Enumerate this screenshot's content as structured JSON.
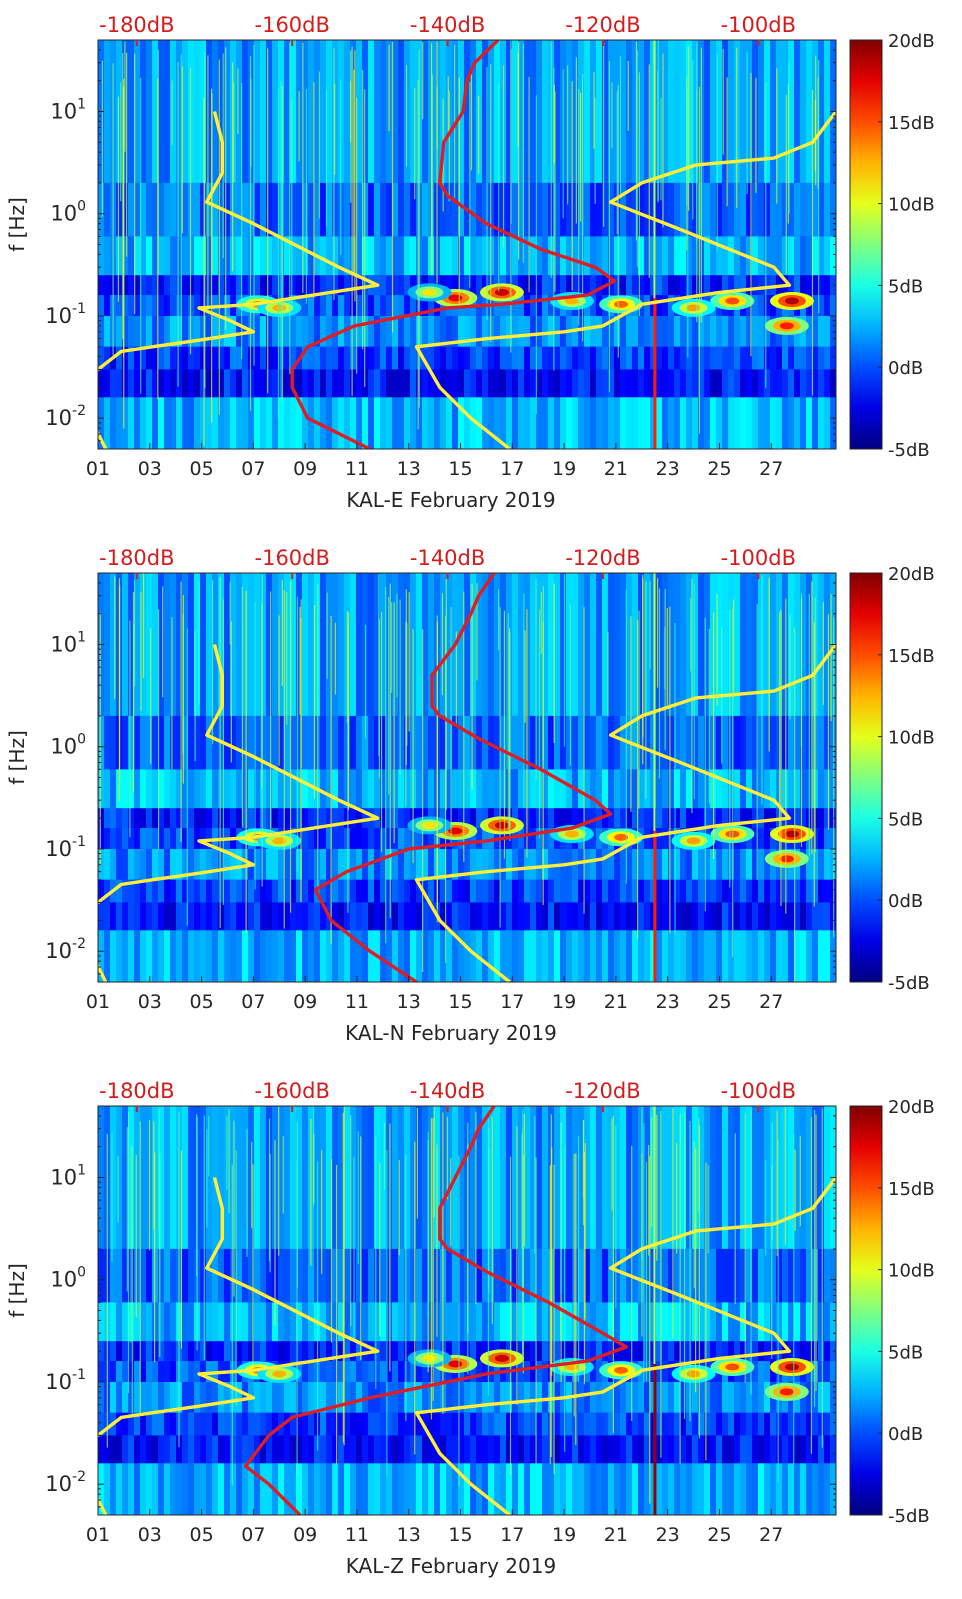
{
  "colors": {
    "background": "#ffffff",
    "axis_text": "#262626",
    "top_axis_text": "#d41c1c",
    "red_curve": "#dc1f26",
    "yellow_curve": "#ffee3a"
  },
  "chart_data": [
    {
      "type": "heatmap",
      "station": "KAL-E",
      "xlabel": "KAL-E February 2019",
      "ylabel": "f [Hz]",
      "y_scale": "log",
      "x_range": [
        1,
        29.5
      ],
      "y_range": [
        0.005,
        50
      ],
      "x_ticks": [
        "01",
        "03",
        "05",
        "07",
        "09",
        "11",
        "13",
        "15",
        "17",
        "19",
        "21",
        "23",
        "25",
        "27"
      ],
      "y_ticks": [
        {
          "base": "10",
          "exp": "-2"
        },
        {
          "base": "10",
          "exp": "-1"
        },
        {
          "base": "10",
          "exp": "0"
        },
        {
          "base": "10",
          "exp": "1"
        }
      ],
      "top_ticks": [
        "-180dB",
        "-160dB",
        "-140dB",
        "-120dB",
        "-100dB"
      ],
      "top_axis_range_db": [
        -185,
        -90
      ],
      "colorbar": {
        "range_db": [
          -5,
          20
        ],
        "ticks": [
          "-5dB",
          "0dB",
          "5dB",
          "10dB",
          "15dB",
          "20dB"
        ]
      },
      "series": [
        {
          "color": "red",
          "points": [
            [
              -133.5,
              50
            ],
            [
              -136.5,
              30
            ],
            [
              -137.5,
              20
            ],
            [
              -138,
              10
            ],
            [
              -140.5,
              5
            ],
            [
              -141,
              2
            ],
            [
              -140,
              1.5
            ],
            [
              -135,
              0.8
            ],
            [
              -128,
              0.45
            ],
            [
              -121,
              0.3
            ],
            [
              -118.5,
              0.22
            ],
            [
              -122,
              0.16
            ],
            [
              -133,
              0.13
            ],
            [
              -140,
              0.12
            ],
            [
              -152,
              0.08
            ],
            [
              -158,
              0.05
            ],
            [
              -160,
              0.03
            ],
            [
              -160,
              0.02
            ],
            [
              -158,
              0.01
            ],
            [
              -150,
              0.005
            ]
          ]
        },
        {
          "color": "yellow",
          "points": [
            [
              -170,
              10
            ],
            [
              -169,
              5
            ],
            [
              -169,
              2.5
            ],
            [
              -171,
              1.3
            ],
            [
              -165,
              0.8
            ],
            [
              -154,
              0.3
            ],
            [
              -149,
              0.2
            ],
            [
              -165,
              0.13
            ],
            [
              -172,
              0.12
            ],
            [
              -168,
              0.09
            ],
            [
              -165,
              0.07
            ],
            [
              -172,
              0.058
            ],
            [
              -178,
              0.05
            ],
            [
              -182,
              0.045
            ],
            [
              -185,
              0.03
            ],
            [
              -187,
              0.02
            ],
            [
              -186,
              0.01
            ],
            [
              -184,
              0.005
            ]
          ]
        },
        {
          "color": "yellow",
          "points": [
            [
              -90,
              10
            ],
            [
              -93,
              5
            ],
            [
              -98,
              3.5
            ],
            [
              -108,
              3
            ],
            [
              -115,
              2
            ],
            [
              -119,
              1.3
            ],
            [
              -110,
              0.7
            ],
            [
              -98,
              0.3
            ],
            [
              -96,
              0.2
            ],
            [
              -105,
              0.17
            ],
            [
              -115,
              0.13
            ],
            [
              -120,
              0.08
            ],
            [
              -125,
              0.07
            ],
            [
              -135,
              0.06
            ],
            [
              -144,
              0.05
            ],
            [
              -141,
              0.02
            ],
            [
              -137,
              0.01
            ],
            [
              -132,
              0.005
            ]
          ]
        }
      ]
    },
    {
      "type": "heatmap",
      "station": "KAL-N",
      "xlabel": "KAL-N February 2019",
      "ylabel": "f [Hz]",
      "y_scale": "log",
      "x_range": [
        1,
        29.5
      ],
      "y_range": [
        0.005,
        50
      ],
      "x_ticks": [
        "01",
        "03",
        "05",
        "07",
        "09",
        "11",
        "13",
        "15",
        "17",
        "19",
        "21",
        "23",
        "25",
        "27"
      ],
      "y_ticks": [
        {
          "base": "10",
          "exp": "-2"
        },
        {
          "base": "10",
          "exp": "-1"
        },
        {
          "base": "10",
          "exp": "0"
        },
        {
          "base": "10",
          "exp": "1"
        }
      ],
      "top_ticks": [
        "-180dB",
        "-160dB",
        "-140dB",
        "-120dB",
        "-100dB"
      ],
      "top_axis_range_db": [
        -185,
        -90
      ],
      "colorbar": {
        "range_db": [
          -5,
          20
        ],
        "ticks": [
          "-5dB",
          "0dB",
          "5dB",
          "10dB",
          "15dB",
          "20dB"
        ]
      },
      "series": [
        {
          "color": "red",
          "points": [
            [
              -134,
              50
            ],
            [
              -136,
              30
            ],
            [
              -137,
              20
            ],
            [
              -139,
              10
            ],
            [
              -142,
              5
            ],
            [
              -142,
              2.5
            ],
            [
              -141,
              2
            ],
            [
              -136,
              1.2
            ],
            [
              -128,
              0.6
            ],
            [
              -121,
              0.3
            ],
            [
              -119,
              0.22
            ],
            [
              -124,
              0.16
            ],
            [
              -135,
              0.12
            ],
            [
              -145,
              0.1
            ],
            [
              -153,
              0.06
            ],
            [
              -157,
              0.04
            ],
            [
              -155,
              0.02
            ],
            [
              -150,
              0.01
            ],
            [
              -144,
              0.005
            ]
          ]
        },
        {
          "color": "yellow",
          "points": [
            [
              -170,
              10
            ],
            [
              -169,
              5
            ],
            [
              -169,
              2.5
            ],
            [
              -171,
              1.3
            ],
            [
              -165,
              0.8
            ],
            [
              -154,
              0.3
            ],
            [
              -149,
              0.2
            ],
            [
              -165,
              0.13
            ],
            [
              -172,
              0.12
            ],
            [
              -168,
              0.09
            ],
            [
              -165,
              0.07
            ],
            [
              -172,
              0.058
            ],
            [
              -178,
              0.05
            ],
            [
              -182,
              0.045
            ],
            [
              -185,
              0.03
            ],
            [
              -187,
              0.02
            ],
            [
              -186,
              0.01
            ],
            [
              -184,
              0.005
            ]
          ]
        },
        {
          "color": "yellow",
          "points": [
            [
              -90,
              10
            ],
            [
              -93,
              5
            ],
            [
              -98,
              3.5
            ],
            [
              -108,
              3
            ],
            [
              -115,
              2
            ],
            [
              -119,
              1.3
            ],
            [
              -110,
              0.7
            ],
            [
              -98,
              0.3
            ],
            [
              -96,
              0.2
            ],
            [
              -105,
              0.17
            ],
            [
              -115,
              0.13
            ],
            [
              -120,
              0.08
            ],
            [
              -125,
              0.07
            ],
            [
              -135,
              0.06
            ],
            [
              -144,
              0.05
            ],
            [
              -141,
              0.02
            ],
            [
              -137,
              0.01
            ],
            [
              -132,
              0.005
            ]
          ]
        }
      ]
    },
    {
      "type": "heatmap",
      "station": "KAL-Z",
      "xlabel": "KAL-Z February 2019",
      "ylabel": "f [Hz]",
      "y_scale": "log",
      "x_range": [
        1,
        29.5
      ],
      "y_range": [
        0.005,
        50
      ],
      "x_ticks": [
        "01",
        "03",
        "05",
        "07",
        "09",
        "11",
        "13",
        "15",
        "17",
        "19",
        "21",
        "23",
        "25",
        "27"
      ],
      "y_ticks": [
        {
          "base": "10",
          "exp": "-2"
        },
        {
          "base": "10",
          "exp": "-1"
        },
        {
          "base": "10",
          "exp": "0"
        },
        {
          "base": "10",
          "exp": "1"
        }
      ],
      "top_ticks": [
        "-180dB",
        "-160dB",
        "-140dB",
        "-120dB",
        "-100dB"
      ],
      "top_axis_range_db": [
        -185,
        -90
      ],
      "colorbar": {
        "range_db": [
          -5,
          20
        ],
        "ticks": [
          "-5dB",
          "0dB",
          "5dB",
          "10dB",
          "15dB",
          "20dB"
        ]
      },
      "series": [
        {
          "color": "red",
          "points": [
            [
              -134,
              50
            ],
            [
              -136,
              30
            ],
            [
              -137,
              20
            ],
            [
              -139,
              10
            ],
            [
              -141,
              5
            ],
            [
              -141,
              2.5
            ],
            [
              -140,
              2
            ],
            [
              -135,
              1.2
            ],
            [
              -127,
              0.6
            ],
            [
              -120,
              0.3
            ],
            [
              -117,
              0.22
            ],
            [
              -122,
              0.16
            ],
            [
              -135,
              0.12
            ],
            [
              -150,
              0.07
            ],
            [
              -160,
              0.045
            ],
            [
              -163,
              0.03
            ],
            [
              -166,
              0.015
            ],
            [
              -163,
              0.01
            ],
            [
              -159,
              0.005
            ]
          ]
        },
        {
          "color": "yellow",
          "points": [
            [
              -170,
              10
            ],
            [
              -169,
              5
            ],
            [
              -169,
              2.5
            ],
            [
              -171,
              1.3
            ],
            [
              -165,
              0.8
            ],
            [
              -154,
              0.3
            ],
            [
              -149,
              0.2
            ],
            [
              -165,
              0.13
            ],
            [
              -172,
              0.12
            ],
            [
              -168,
              0.09
            ],
            [
              -165,
              0.07
            ],
            [
              -172,
              0.058
            ],
            [
              -178,
              0.05
            ],
            [
              -182,
              0.045
            ],
            [
              -185,
              0.03
            ],
            [
              -187,
              0.02
            ],
            [
              -186,
              0.01
            ],
            [
              -184,
              0.005
            ]
          ]
        },
        {
          "color": "yellow",
          "points": [
            [
              -90,
              10
            ],
            [
              -93,
              5
            ],
            [
              -98,
              3.5
            ],
            [
              -108,
              3
            ],
            [
              -115,
              2
            ],
            [
              -119,
              1.3
            ],
            [
              -110,
              0.7
            ],
            [
              -98,
              0.3
            ],
            [
              -96,
              0.2
            ],
            [
              -105,
              0.17
            ],
            [
              -115,
              0.13
            ],
            [
              -120,
              0.08
            ],
            [
              -125,
              0.07
            ],
            [
              -135,
              0.06
            ],
            [
              -144,
              0.05
            ],
            [
              -141,
              0.02
            ],
            [
              -137,
              0.01
            ],
            [
              -132,
              0.005
            ]
          ]
        }
      ]
    }
  ]
}
